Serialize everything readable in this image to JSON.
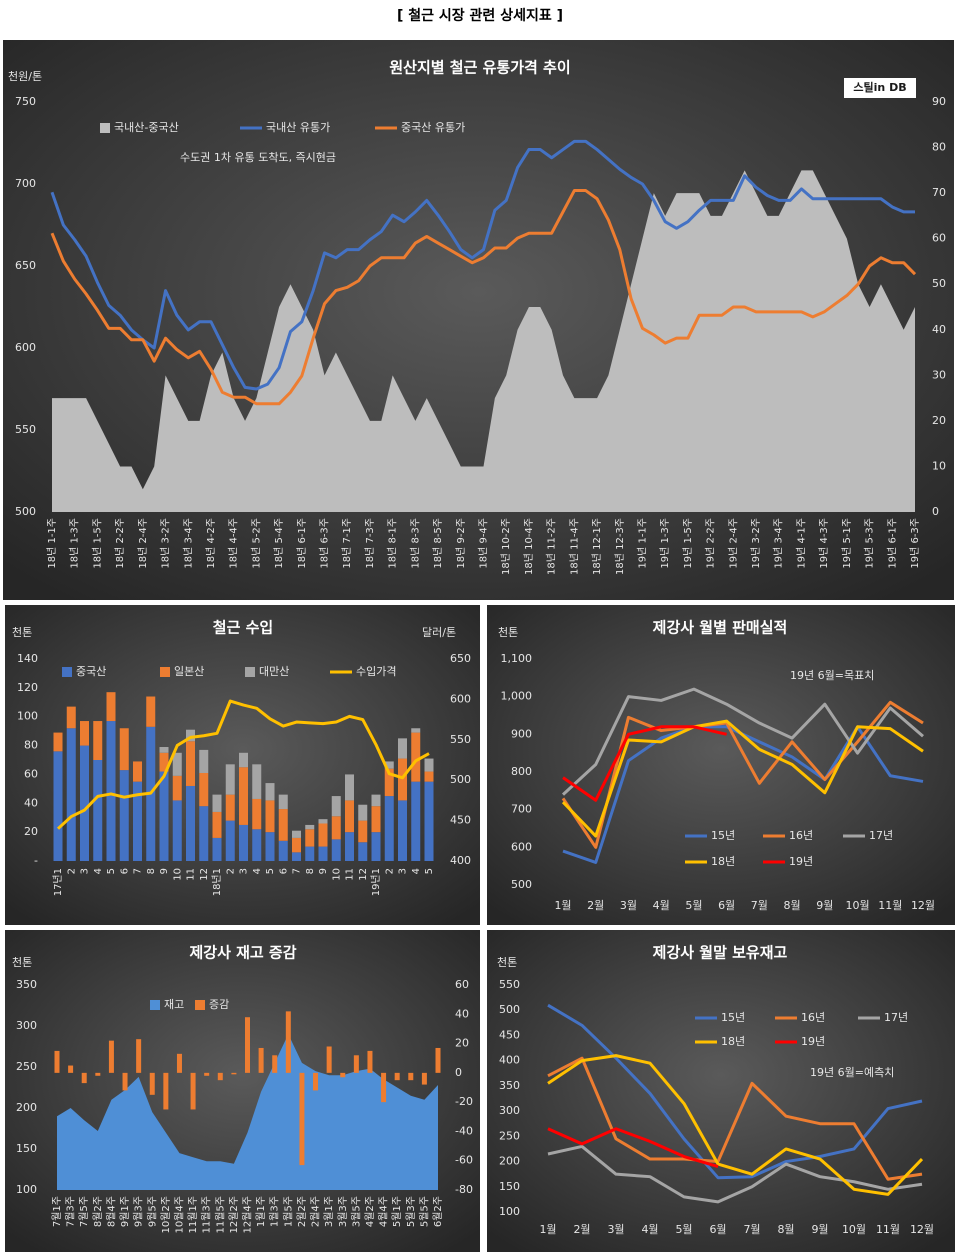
{
  "page_title": "[ 철근 시장 관련 상세지표 ]",
  "chart_data": [
    {
      "type": "combo",
      "title": "원산지별 철근 유통가격 추이",
      "ylabel": "천원/톤",
      "annotation": "수도권 1차 유통 도착도, 즉시현금",
      "logo": "스틸in DB",
      "categories": [
        "18년 1-1주",
        null,
        "18년 1-3주",
        null,
        "18년 1-5주",
        null,
        "18년 2-2주",
        null,
        "18년 2-4주",
        null,
        "18년 3-2주",
        null,
        "18년 3-4주",
        null,
        "18년 4-2주",
        null,
        "18년 4-4주",
        null,
        "18년 5-2주",
        null,
        "18년 5-4주",
        null,
        "18년 6-1주",
        null,
        "18년 6-3주",
        null,
        "18년 7-1주",
        null,
        "18년 7-3주",
        null,
        "18년 8-1주",
        null,
        "18년 8-3주",
        null,
        "18년 8-5주",
        null,
        "18년 9-2주",
        null,
        "18년 9-4주",
        null,
        "18년 10-2주",
        null,
        "18년 10-4주",
        null,
        "18년 11-2주",
        null,
        "18년 11-4주",
        null,
        "18년 12-1주",
        null,
        "18년 12-3주",
        null,
        "19년 1-1주",
        null,
        "19년 1-3주",
        null,
        "19년 1-5주",
        null,
        "19년 2-2주",
        null,
        "19년 2-4주",
        null,
        "19년 3-2주",
        null,
        "19년 3-4주",
        null,
        "19년 4-1주",
        null,
        "19년 4-3주",
        null,
        "19년 5-1주",
        null,
        "19년 5-3주",
        null,
        "19년 6-1주",
        null,
        "19년 6-3주"
      ],
      "series": [
        {
          "name": "국내산-중국산",
          "type": "area",
          "axis": "y2",
          "color": "#bdbdbd",
          "values": [
            25,
            25,
            25,
            25,
            20,
            15,
            10,
            10,
            5,
            10,
            30,
            25,
            20,
            20,
            30,
            35,
            25,
            20,
            25,
            35,
            45,
            50,
            45,
            40,
            30,
            35,
            30,
            25,
            20,
            20,
            30,
            25,
            20,
            25,
            20,
            15,
            10,
            10,
            10,
            25,
            30,
            40,
            45,
            45,
            40,
            30,
            25,
            25,
            25,
            30,
            40,
            50,
            60,
            70,
            65,
            70,
            70,
            70,
            65,
            65,
            70,
            75,
            70,
            65,
            65,
            70,
            75,
            75,
            70,
            65,
            60,
            50,
            45,
            50,
            45,
            40,
            45
          ]
        },
        {
          "name": "국내산 유통가",
          "type": "line",
          "color": "#4472c4",
          "values": [
            695,
            675,
            666,
            656,
            640,
            626,
            620,
            611,
            605,
            600,
            635,
            620,
            611,
            616,
            616,
            602,
            588,
            576,
            575,
            578,
            588,
            610,
            616,
            635,
            658,
            655,
            660,
            660,
            666,
            671,
            681,
            677,
            683,
            690,
            681,
            671,
            660,
            655,
            660,
            684,
            690,
            710,
            721,
            721,
            716,
            721,
            726,
            726,
            721,
            715,
            709,
            704,
            700,
            690,
            677,
            673,
            677,
            684,
            690,
            690,
            690,
            705,
            698,
            693,
            690,
            690,
            697,
            691,
            691,
            691,
            691,
            691,
            691,
            691,
            686,
            683,
            683
          ]
        },
        {
          "name": "중국산 유통가",
          "type": "line",
          "color": "#ed7d31",
          "values": [
            670,
            653,
            642,
            633,
            623,
            612,
            612,
            605,
            605,
            592,
            606,
            599,
            594,
            598,
            587,
            573,
            570,
            570,
            566,
            566,
            566,
            573,
            583,
            606,
            627,
            635,
            637,
            641,
            650,
            655,
            655,
            655,
            664,
            668,
            664,
            660,
            656,
            652,
            655,
            661,
            661,
            667,
            670,
            670,
            670,
            683,
            696,
            696,
            691,
            678,
            660,
            630,
            612,
            608,
            603,
            606,
            606,
            620,
            620,
            620,
            625,
            625,
            622,
            622,
            622,
            622,
            622,
            619,
            622,
            627,
            632,
            639,
            650,
            655,
            652,
            652,
            645
          ]
        }
      ],
      "ylim": [
        500,
        750
      ],
      "yticks": [
        500,
        550,
        600,
        650,
        700,
        750
      ],
      "y2lim": [
        0,
        90
      ],
      "y2ticks": [
        0,
        10,
        20,
        30,
        40,
        50,
        60,
        70,
        80,
        90
      ],
      "grid": false
    },
    {
      "type": "combo",
      "title": "철근 수입",
      "ylabel": "천톤",
      "y2label": "달러/톤",
      "stacked": true,
      "categories": [
        "17년1",
        "2",
        "3",
        "4",
        "5",
        "6",
        "7",
        "8",
        "9",
        "10",
        "11",
        "12",
        "18년1",
        "2",
        "3",
        "4",
        "5",
        "6",
        "7",
        "8",
        "9",
        "10",
        "11",
        "12",
        "19년1",
        "2",
        "3",
        "4",
        "5"
      ],
      "series": [
        {
          "name": "중국산",
          "type": "bar",
          "color": "#4472c4",
          "values": [
            76,
            92,
            80,
            70,
            97,
            63,
            55,
            93,
            62,
            42,
            52,
            38,
            16,
            28,
            25,
            22,
            20,
            14,
            6,
            10,
            10,
            15,
            20,
            13,
            20,
            45,
            42,
            55,
            55
          ]
        },
        {
          "name": "일본산",
          "type": "bar",
          "color": "#ed7d31",
          "values": [
            13,
            15,
            17,
            27,
            20,
            29,
            14,
            21,
            13,
            17,
            31,
            23,
            18,
            18,
            40,
            21,
            22,
            22,
            10,
            12,
            16,
            16,
            22,
            15,
            18,
            19,
            29,
            34,
            7
          ]
        },
        {
          "name": "대만산",
          "type": "bar",
          "color": "#a5a5a5",
          "values": [
            0,
            0,
            0,
            0,
            0,
            0,
            0,
            0,
            4,
            16,
            8,
            16,
            12,
            21,
            10,
            24,
            12,
            10,
            5,
            3,
            3,
            14,
            18,
            11,
            8,
            5,
            14,
            3,
            9
          ]
        },
        {
          "name": "수입가격",
          "type": "line",
          "axis": "y2",
          "color": "#ffc000",
          "values": [
            440,
            455,
            463,
            480,
            483,
            479,
            482,
            484,
            505,
            543,
            553,
            555,
            558,
            598,
            593,
            589,
            576,
            567,
            572,
            571,
            570,
            572,
            579,
            575,
            544,
            508,
            503,
            524,
            533
          ]
        }
      ],
      "ylim": [
        0,
        140
      ],
      "yticks": [
        {
          "value": 0,
          "label": "-"
        },
        20,
        40,
        60,
        80,
        100,
        120,
        140
      ],
      "y2lim": [
        400,
        650
      ],
      "y2ticks": [
        400,
        450,
        500,
        550,
        600,
        650
      ],
      "grid": false
    },
    {
      "type": "line",
      "title": "제강사 월별 판매실적",
      "ylabel": "천톤",
      "annotation": "19년 6월=목표치",
      "categories": [
        "1월",
        "2월",
        "3월",
        "4월",
        "5월",
        "6월",
        "7월",
        "8월",
        "9월",
        "10월",
        "11월",
        "12월"
      ],
      "series": [
        {
          "name": "15년",
          "type": "line",
          "color": "#4472c4",
          "values": [
            590,
            560,
            830,
            890,
            920,
            920,
            880,
            840,
            780,
            920,
            790,
            775
          ]
        },
        {
          "name": "16년",
          "type": "line",
          "color": "#ed7d31",
          "values": [
            730,
            600,
            945,
            910,
            920,
            930,
            770,
            880,
            780,
            880,
            985,
            930
          ]
        },
        {
          "name": "17년",
          "type": "line",
          "color": "#a5a5a5",
          "values": [
            740,
            820,
            1000,
            990,
            1020,
            980,
            930,
            890,
            980,
            850,
            970,
            895
          ]
        },
        {
          "name": "18년",
          "type": "line",
          "color": "#ffc000",
          "values": [
            720,
            630,
            885,
            880,
            920,
            935,
            860,
            820,
            745,
            920,
            915,
            855
          ]
        },
        {
          "name": "19년",
          "type": "line",
          "color": "#ff0000",
          "values": [
            785,
            725,
            900,
            920,
            920,
            900,
            null,
            null,
            null,
            null,
            null,
            null
          ]
        }
      ],
      "ylim": [
        500,
        1100
      ],
      "yticks": [
        500,
        600,
        700,
        800,
        900,
        {
          "value": 1000,
          "label": "1,000"
        },
        {
          "value": 1100,
          "label": "1,100"
        }
      ],
      "grid": false
    },
    {
      "type": "combo",
      "title": "제강사 재고 증감",
      "ylabel": "천톤",
      "categories": [
        "7월1주",
        "7월3주",
        "7월5주",
        "8월2주",
        "8월4주",
        "9월1주",
        "9월3주",
        "9월5주",
        "10월2주",
        "10월4주",
        "11월1주",
        "11월3주",
        "11월5주",
        "12월2주",
        "12월4주",
        "1월1주",
        "1월3주",
        "1월5주",
        "2월2주",
        "2월4주",
        "3월1주",
        "3월3주",
        "3월5주",
        "4월2주",
        "4월4주",
        "5월1주",
        "5월3주",
        "5월5주",
        "6월2주"
      ],
      "series": [
        {
          "name": "재고",
          "type": "area",
          "color": "#4f8fd6",
          "values": [
            190,
            200,
            185,
            172,
            210,
            222,
            238,
            195,
            170,
            145,
            140,
            135,
            135,
            132,
            170,
            220,
            255,
            290,
            255,
            245,
            240,
            240,
            245,
            248,
            235,
            225,
            215,
            210,
            228
          ]
        },
        {
          "name": "증감",
          "type": "bar",
          "axis": "y2",
          "color": "#ed7d31",
          "values": [
            15,
            5,
            -7,
            -2,
            22,
            -12,
            23,
            -15,
            -25,
            13,
            -25,
            -2,
            -5,
            -1,
            38,
            17,
            12,
            42,
            -63,
            -12,
            18,
            -3,
            12,
            15,
            -20,
            -5,
            -5,
            -8,
            17
          ]
        }
      ],
      "ylim": [
        100,
        350
      ],
      "yticks": [
        100,
        150,
        200,
        250,
        300,
        350
      ],
      "y2lim": [
        -80,
        60
      ],
      "y2ticks": [
        -80,
        -60,
        -40,
        -20,
        0,
        20,
        40,
        60
      ],
      "grid": false
    },
    {
      "type": "line",
      "title": "제강사 월말 보유재고",
      "ylabel": "천톤",
      "annotation": "19년 6월=예측치",
      "categories": [
        "1월",
        "2월",
        "3월",
        "4월",
        "5월",
        "6월",
        "7월",
        "8월",
        "9월",
        "10월",
        "11월",
        "12월"
      ],
      "series": [
        {
          "name": "15년",
          "type": "line",
          "color": "#4472c4",
          "values": [
            510,
            470,
            405,
            335,
            245,
            168,
            170,
            200,
            210,
            225,
            305,
            320
          ]
        },
        {
          "name": "16년",
          "type": "line",
          "color": "#ed7d31",
          "values": [
            370,
            405,
            245,
            205,
            205,
            200,
            355,
            290,
            275,
            275,
            165,
            175
          ]
        },
        {
          "name": "17년",
          "type": "line",
          "color": "#a5a5a5",
          "values": [
            215,
            230,
            175,
            170,
            130,
            120,
            150,
            195,
            170,
            160,
            145,
            155
          ]
        },
        {
          "name": "18년",
          "type": "line",
          "color": "#ffc000",
          "values": [
            355,
            400,
            410,
            395,
            315,
            195,
            175,
            225,
            205,
            145,
            135,
            205
          ]
        },
        {
          "name": "19년",
          "type": "line",
          "color": "#ff0000",
          "values": [
            265,
            235,
            265,
            240,
            210,
            190,
            null,
            null,
            null,
            null,
            null,
            null
          ]
        }
      ],
      "ylim": [
        100,
        550
      ],
      "yticks": [
        100,
        150,
        200,
        250,
        300,
        350,
        400,
        450,
        500,
        550
      ],
      "grid": false
    }
  ]
}
